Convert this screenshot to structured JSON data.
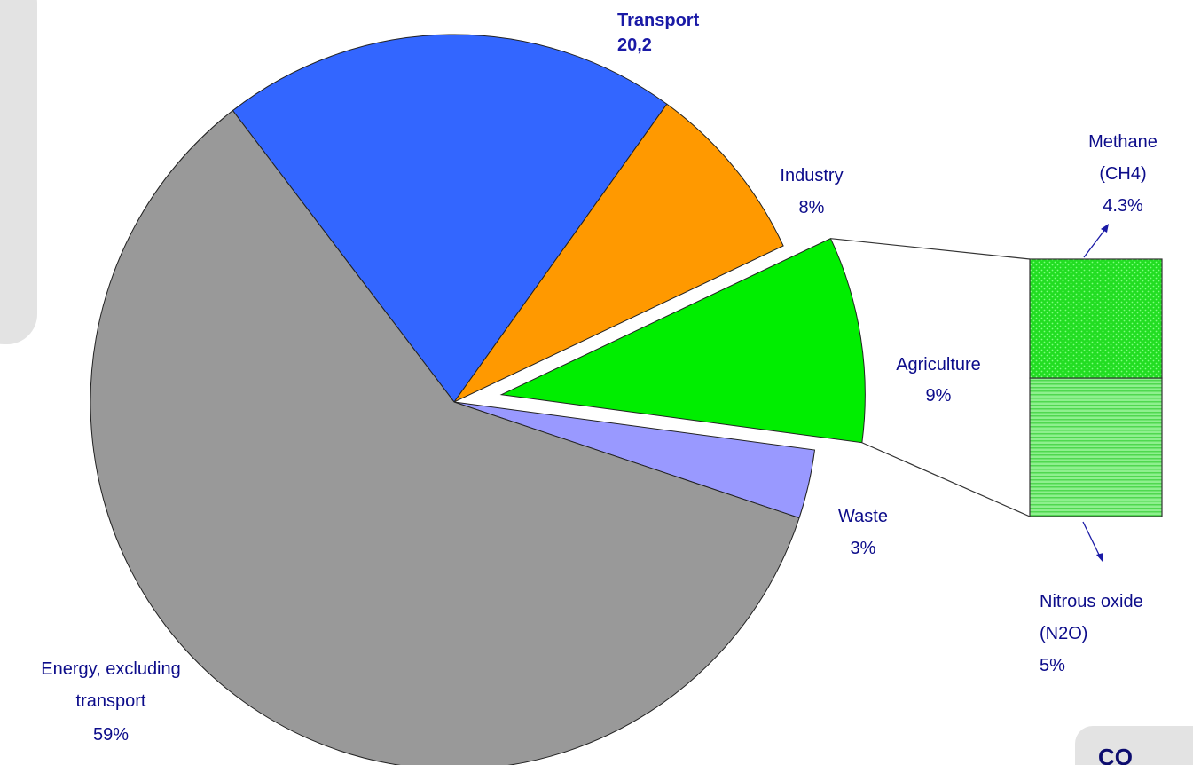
{
  "chart_data": {
    "type": "pie",
    "categories": [
      "Transport",
      "Industry",
      "Agriculture",
      "Waste",
      "Energy, excluding transport"
    ],
    "values": [
      20.2,
      8,
      9,
      3,
      59
    ],
    "colors": [
      "#3366ff",
      "#ff9900",
      "#00ee00",
      "#9999ff",
      "#999999"
    ],
    "labels": {
      "transport": {
        "line1": "Transport",
        "line2": "20,2"
      },
      "industry": {
        "line1": "Industry",
        "line2": "8%"
      },
      "agriculture": {
        "line1": "Agriculture",
        "line2": "9%"
      },
      "waste": {
        "line1": "Waste",
        "line2": "3%"
      },
      "energy": {
        "line1": "Energy, excluding",
        "line2": "transport",
        "line3": "59%"
      }
    },
    "breakdown": {
      "of": "Agriculture",
      "items": [
        {
          "name_line1": "Methane",
          "name_line2": "(CH4)",
          "value_label": "4.3%",
          "value": 4.3,
          "color": "#22dd22"
        },
        {
          "name_line1": "Nitrous oxide",
          "name_line2": "(N2O)",
          "value_label": "5%",
          "value": 5,
          "color": "#77ee77"
        }
      ]
    }
  },
  "corner_text": "CO"
}
